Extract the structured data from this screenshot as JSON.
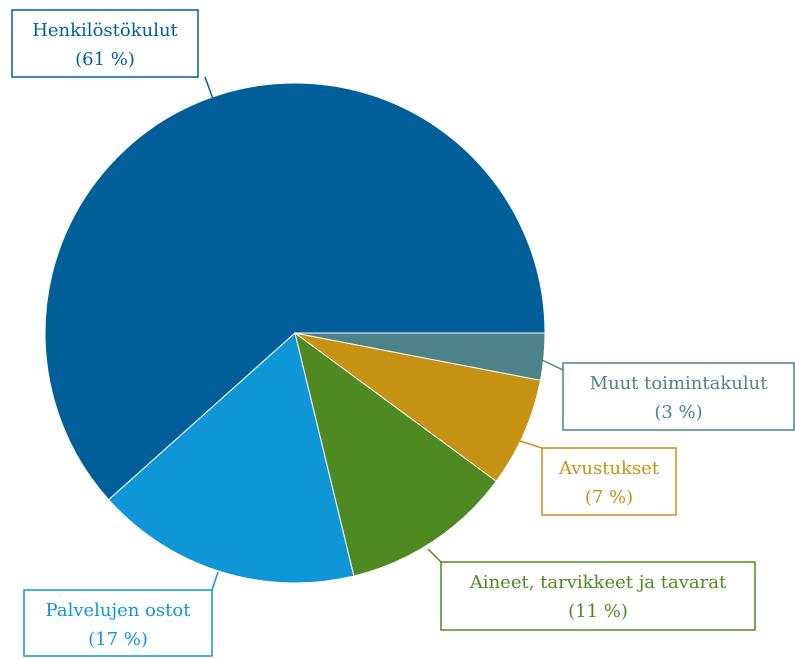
{
  "chart_data": {
    "type": "pie",
    "categories": [
      "Henkilöstökulut",
      "Palvelujen ostot",
      "Aineet, tarvikkeet ja tavarat",
      "Avustukset",
      "Muut toimintakulut"
    ],
    "values": [
      61,
      17,
      11,
      7,
      3
    ],
    "value_labels": [
      "(61 %)",
      "(17 %)",
      "(11 %)",
      "(7 %)",
      "(3 %)"
    ],
    "colors": [
      "#005f99",
      "#0e96d6",
      "#4e8a21",
      "#c69214",
      "#4e8289"
    ]
  }
}
